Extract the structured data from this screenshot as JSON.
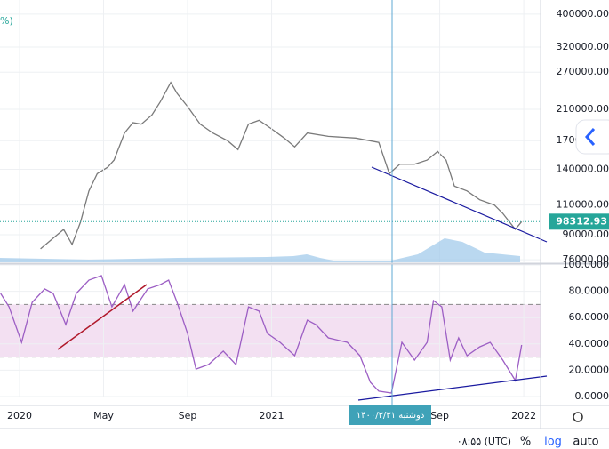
{
  "chart_data": [
    {
      "type": "line",
      "name": "price",
      "log_scale": true,
      "color": "#7a7a7a",
      "grid": true,
      "xlim": [
        -0.93,
        24.8
      ],
      "ylim": [
        74700,
        440000
      ],
      "yticks": [
        {
          "value": 76000,
          "label": "76000.00"
        },
        {
          "value": 90000,
          "label": "90000.00"
        },
        {
          "value": 110000,
          "label": "110000.00"
        },
        {
          "value": 140000,
          "label": "140000.00"
        },
        {
          "value": 170000,
          "label": "170000.00"
        },
        {
          "value": 210000,
          "label": "210000.00"
        },
        {
          "value": 270000,
          "label": "270000.00"
        },
        {
          "value": 320000,
          "label": "320000.00"
        },
        {
          "value": 400000,
          "label": "400000.00"
        }
      ],
      "x": [
        1.0,
        1.6,
        2.1,
        2.5,
        2.9,
        3.3,
        3.7,
        4.2,
        4.5,
        5.0,
        5.4,
        5.8,
        6.3,
        6.7,
        7.2,
        7.5,
        8.0,
        8.6,
        9.2,
        9.9,
        10.4,
        10.9,
        11.4,
        12.0,
        12.6,
        13.1,
        13.7,
        14.7,
        16.0,
        17.1,
        17.6,
        18.1,
        18.8,
        19.4,
        19.9,
        20.3,
        20.7,
        21.3,
        21.9,
        22.6,
        23.0,
        23.6,
        23.9
      ],
      "values": [
        81800,
        87900,
        93300,
        84300,
        97900,
        121000,
        136000,
        142000,
        149000,
        179000,
        192000,
        190000,
        202000,
        221000,
        252000,
        234000,
        214000,
        190000,
        179000,
        170000,
        160000,
        190000,
        195000,
        184000,
        173000,
        163000,
        179000,
        175000,
        173000,
        168000,
        136000,
        145000,
        145000,
        149000,
        158000,
        149000,
        125000,
        121000,
        114000,
        110000,
        104000,
        93300,
        98312.93
      ],
      "price_line": {
        "value": 98312.93,
        "label": "98312.93",
        "color": "#26a69a"
      }
    },
    {
      "type": "line",
      "name": "rsi",
      "color": "#9c5ec4",
      "grid": true,
      "xlim": [
        -0.93,
        24.8
      ],
      "ylim": [
        0,
        100
      ],
      "bands": [
        30,
        70
      ],
      "band_color": "#f3e0f2",
      "yticks": [
        {
          "value": 0,
          "label": "0.0000"
        },
        {
          "value": 20,
          "label": "20.0000"
        },
        {
          "value": 40,
          "label": "40.0000"
        },
        {
          "value": 60,
          "label": "60.0000"
        },
        {
          "value": 80,
          "label": "80.0000"
        },
        {
          "value": 100,
          "label": "100.0000"
        }
      ],
      "xticks": [
        {
          "value": 0,
          "label": "2020"
        },
        {
          "value": 4,
          "label": "May"
        },
        {
          "value": 8,
          "label": "Sep"
        },
        {
          "value": 12,
          "label": "2021"
        },
        {
          "value": 20,
          "label": "Sep"
        },
        {
          "value": 24,
          "label": "2022"
        }
      ],
      "x": [
        -0.9,
        -0.5,
        0.1,
        0.6,
        1.2,
        1.6,
        2.2,
        2.7,
        3.3,
        3.9,
        4.4,
        5.0,
        5.4,
        6.1,
        6.7,
        7.1,
        7.5,
        8.0,
        8.4,
        9.0,
        9.7,
        10.3,
        10.9,
        11.4,
        11.8,
        12.4,
        13.1,
        13.7,
        14.1,
        14.7,
        15.6,
        16.2,
        16.7,
        17.1,
        17.7,
        18.2,
        18.8,
        19.4,
        19.7,
        20.1,
        20.5,
        20.9,
        21.3,
        21.9,
        22.4,
        23.0,
        23.6,
        23.9
      ],
      "values": [
        78.4,
        68.2,
        41.2,
        71.6,
        81.8,
        78.4,
        54.7,
        78.4,
        88.5,
        91.9,
        68.2,
        85.1,
        64.9,
        81.8,
        85.1,
        88.5,
        71.6,
        48.0,
        20.9,
        24.3,
        34.5,
        24.3,
        68.2,
        64.9,
        48.0,
        41.2,
        31.1,
        58.1,
        54.7,
        44.6,
        41.2,
        31.1,
        10.8,
        4.1,
        2.7,
        41.2,
        27.7,
        41.2,
        73.0,
        68.2,
        27.7,
        44.6,
        31.1,
        37.8,
        41.2,
        27.7,
        12.2,
        39.2
      ]
    }
  ],
  "ui": {
    "legend_fragment": "%)",
    "crosshair_label": "دوشنبه ۱۴۰۰/۳/۳۱",
    "time": "۰۸:۵۵ (UTC)",
    "percent": "%",
    "log": "log",
    "auto": "auto"
  }
}
